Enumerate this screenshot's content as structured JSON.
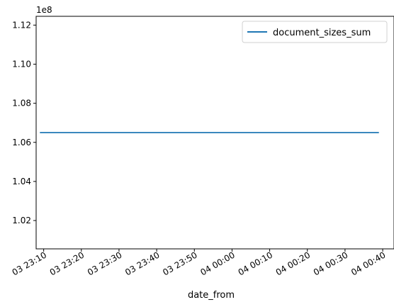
{
  "chart_data": {
    "type": "line",
    "xlabel": "date_from",
    "ylabel": "",
    "y_scale_label": "1e8",
    "x_tick_labels": [
      "03 23:10",
      "03 23:20",
      "03 23:30",
      "03 23:40",
      "03 23:50",
      "04 00:00",
      "04 00:10",
      "04 00:20",
      "04 00:30",
      "04 00:40"
    ],
    "y_tick_labels": [
      "1.02",
      "1.04",
      "1.06",
      "1.08",
      "1.10",
      "1.12"
    ],
    "y_ticks": [
      1.02,
      1.04,
      1.06,
      1.08,
      1.1,
      1.12
    ],
    "ylim": [
      1.0055,
      1.1245
    ],
    "xlim": [
      "03 23:08",
      "04 00:43"
    ],
    "x_ticks": [
      "03 23:10",
      "03 23:20",
      "03 23:30",
      "03 23:40",
      "03 23:50",
      "04 00:00",
      "04 00:10",
      "04 00:20",
      "04 00:30",
      "04 00:40"
    ],
    "series": [
      {
        "name": "document_sizes_sum",
        "color": "#1f77b4",
        "x": [
          "03 23:09",
          "04 00:39"
        ],
        "y": [
          1.065,
          1.065
        ]
      }
    ],
    "legend_position": "upper right",
    "grid": false
  }
}
